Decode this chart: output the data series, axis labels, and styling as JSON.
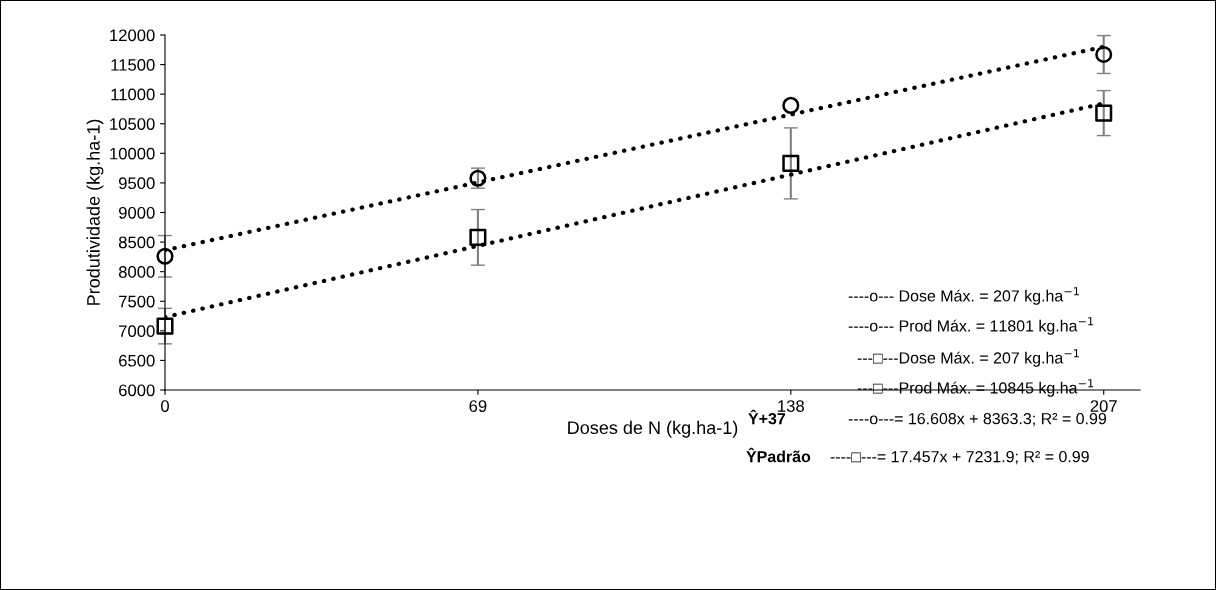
{
  "chart_data": {
    "type": "scatter",
    "xlabel": "Doses de N (kg.ha-1)",
    "ylabel": "Produtividade (kg.ha-1)",
    "x": [
      0,
      69,
      138,
      207
    ],
    "xlim": [
      0,
      215
    ],
    "xticks": [
      0,
      69,
      138,
      207
    ],
    "ylim": [
      6000,
      12000
    ],
    "yticks": [
      6000,
      6500,
      7000,
      7500,
      8000,
      8500,
      9000,
      9500,
      10000,
      10500,
      11000,
      11500,
      12000
    ],
    "grid": false,
    "legend": false,
    "series": [
      {
        "marker": "circle",
        "color": "#000000",
        "values": [
          8260,
          9580,
          10810,
          11670
        ],
        "errors": [
          350,
          170,
          null,
          320
        ]
      },
      {
        "marker": "square",
        "color": "#000000",
        "values": [
          7080,
          8580,
          9830,
          10680
        ],
        "errors": [
          300,
          470,
          600,
          380
        ]
      },
      {
        "type": "line",
        "line_style": "dotted",
        "color": "#000000",
        "values": [
          8363,
          9509,
          10655,
          11801
        ]
      },
      {
        "type": "line",
        "line_style": "dotted",
        "color": "#000000",
        "values": [
          7232,
          8436,
          9641,
          10845
        ]
      }
    ],
    "annotations": [
      "----ο--- Dose Máx. = 207 kg.ha$^{−1}$",
      "----ο--- Prod Máx. = 11801 kg.ha$^{−1}$",
      "---□---Dose Máx. = 207 kg.ha$^{−1}$",
      "---□---Prod Máx. = 10845 kg.ha$^{−1}$",
      "Ŷ+37",
      "----ο---= 16.608x + 8363.3; R² = 0.99",
      "ŶPadrão",
      "----□---= 17.457x + 7231.9; R² = 0.99"
    ]
  }
}
